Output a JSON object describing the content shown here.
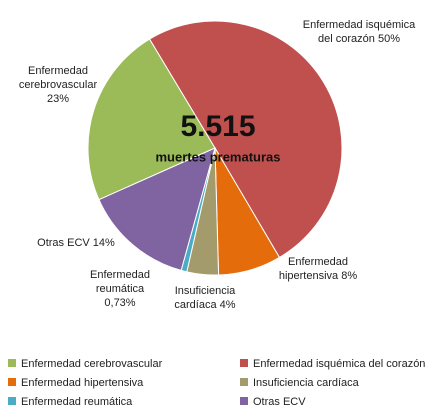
{
  "chart_data": {
    "type": "pie",
    "center_title": "5.515",
    "center_subtitle": "muertes prematuras",
    "categories": [
      "Enfermedad cerebrovascular",
      "Enfermedad isquémica del corazón",
      "Enfermedad hipertensiva",
      "Insuficiencia cardíaca",
      "Enfermedad reumática",
      "Otras ECV"
    ],
    "values": [
      23,
      50,
      8,
      4,
      0.73,
      14
    ],
    "value_labels": [
      "23%",
      "50%",
      "8%",
      "4%",
      "0,73%",
      "14%"
    ],
    "colors": [
      "#9bbb59",
      "#c0504d",
      "#e46c0a",
      "#a39b6c",
      "#4bacc6",
      "#8064a2"
    ],
    "legend": "bottom"
  }
}
